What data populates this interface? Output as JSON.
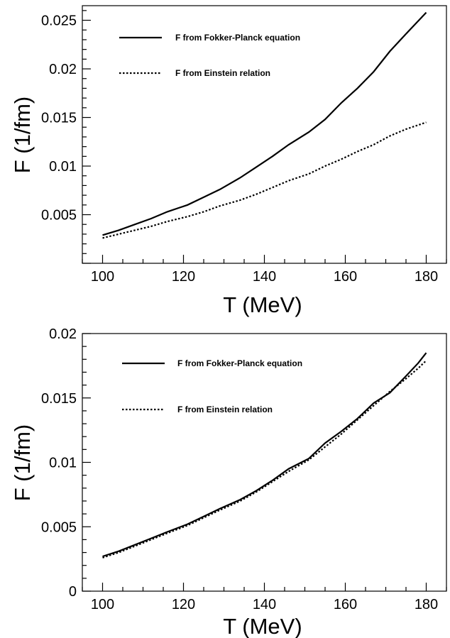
{
  "chart_data": [
    {
      "type": "line",
      "xlabel": "T (MeV)",
      "ylabel": "F (1/fm)",
      "xlim": [
        95,
        185
      ],
      "ylim": [
        0,
        0.0265
      ],
      "xticks": [
        100,
        120,
        140,
        160,
        180
      ],
      "xtick_labels": [
        "100",
        "120",
        "140",
        "160",
        "180"
      ],
      "yticks": [
        0.005,
        0.01,
        0.015,
        0.02,
        0.025
      ],
      "ytick_labels": [
        "0.005",
        "0.01",
        "0.015",
        "0.02",
        "0.025"
      ],
      "grid": false,
      "legend_position": "top-left",
      "series": [
        {
          "name": "F from Fokker-Planck equation",
          "style": "solid",
          "x": [
            100,
            104,
            108,
            112,
            116,
            121,
            125,
            129,
            134,
            138,
            142,
            146,
            151,
            155,
            159,
            163,
            167,
            171,
            175,
            180
          ],
          "y": [
            0.0029,
            0.0034,
            0.004,
            0.0046,
            0.0053,
            0.006,
            0.0068,
            0.0076,
            0.0088,
            0.0099,
            0.011,
            0.0122,
            0.0135,
            0.0148,
            0.0165,
            0.018,
            0.0197,
            0.0218,
            0.0236,
            0.0258
          ]
        },
        {
          "name": "F from Einstein relation",
          "style": "dotted",
          "x": [
            100,
            104,
            108,
            112,
            116,
            121,
            125,
            129,
            134,
            138,
            142,
            146,
            151,
            155,
            159,
            163,
            167,
            171,
            175,
            180
          ],
          "y": [
            0.0026,
            0.003,
            0.0034,
            0.0038,
            0.0043,
            0.0048,
            0.0053,
            0.0059,
            0.0065,
            0.0071,
            0.0078,
            0.0085,
            0.0092,
            0.01,
            0.0107,
            0.0115,
            0.0122,
            0.0131,
            0.0138,
            0.0145
          ]
        }
      ]
    },
    {
      "type": "line",
      "xlabel": "T (MeV)",
      "ylabel": "F (1/fm)",
      "xlim": [
        95,
        185
      ],
      "ylim": [
        0,
        0.02
      ],
      "xticks": [
        100,
        120,
        140,
        160,
        180
      ],
      "xtick_labels": [
        "100",
        "120",
        "140",
        "160",
        "180"
      ],
      "yticks": [
        0,
        0.005,
        0.01,
        0.015,
        0.02
      ],
      "ytick_labels": [
        "0",
        "0.005",
        "0.01",
        "0.015",
        "0.02"
      ],
      "grid": false,
      "legend_position": "top-left",
      "series": [
        {
          "name": "F from Fokker-Planck equation",
          "style": "solid",
          "x": [
            100,
            104,
            108,
            112,
            116,
            121,
            125,
            129,
            134,
            138,
            142,
            146,
            151,
            155,
            159,
            163,
            167,
            171,
            175,
            178,
            180
          ],
          "y": [
            0.0027,
            0.0031,
            0.0036,
            0.0041,
            0.0046,
            0.0052,
            0.0058,
            0.0064,
            0.0071,
            0.0078,
            0.0086,
            0.0095,
            0.0103,
            0.0115,
            0.0124,
            0.0134,
            0.0146,
            0.0154,
            0.0167,
            0.0177,
            0.0185
          ]
        },
        {
          "name": "F from Einstein relation",
          "style": "dotted",
          "x": [
            100,
            104,
            108,
            112,
            116,
            121,
            125,
            129,
            134,
            138,
            142,
            146,
            151,
            155,
            159,
            163,
            167,
            171,
            175,
            178,
            180
          ],
          "y": [
            0.0026,
            0.003,
            0.0035,
            0.004,
            0.0045,
            0.0051,
            0.0057,
            0.0063,
            0.007,
            0.0077,
            0.0085,
            0.0093,
            0.0102,
            0.0112,
            0.0122,
            0.0133,
            0.0144,
            0.0155,
            0.0165,
            0.0173,
            0.0179
          ]
        }
      ]
    }
  ]
}
